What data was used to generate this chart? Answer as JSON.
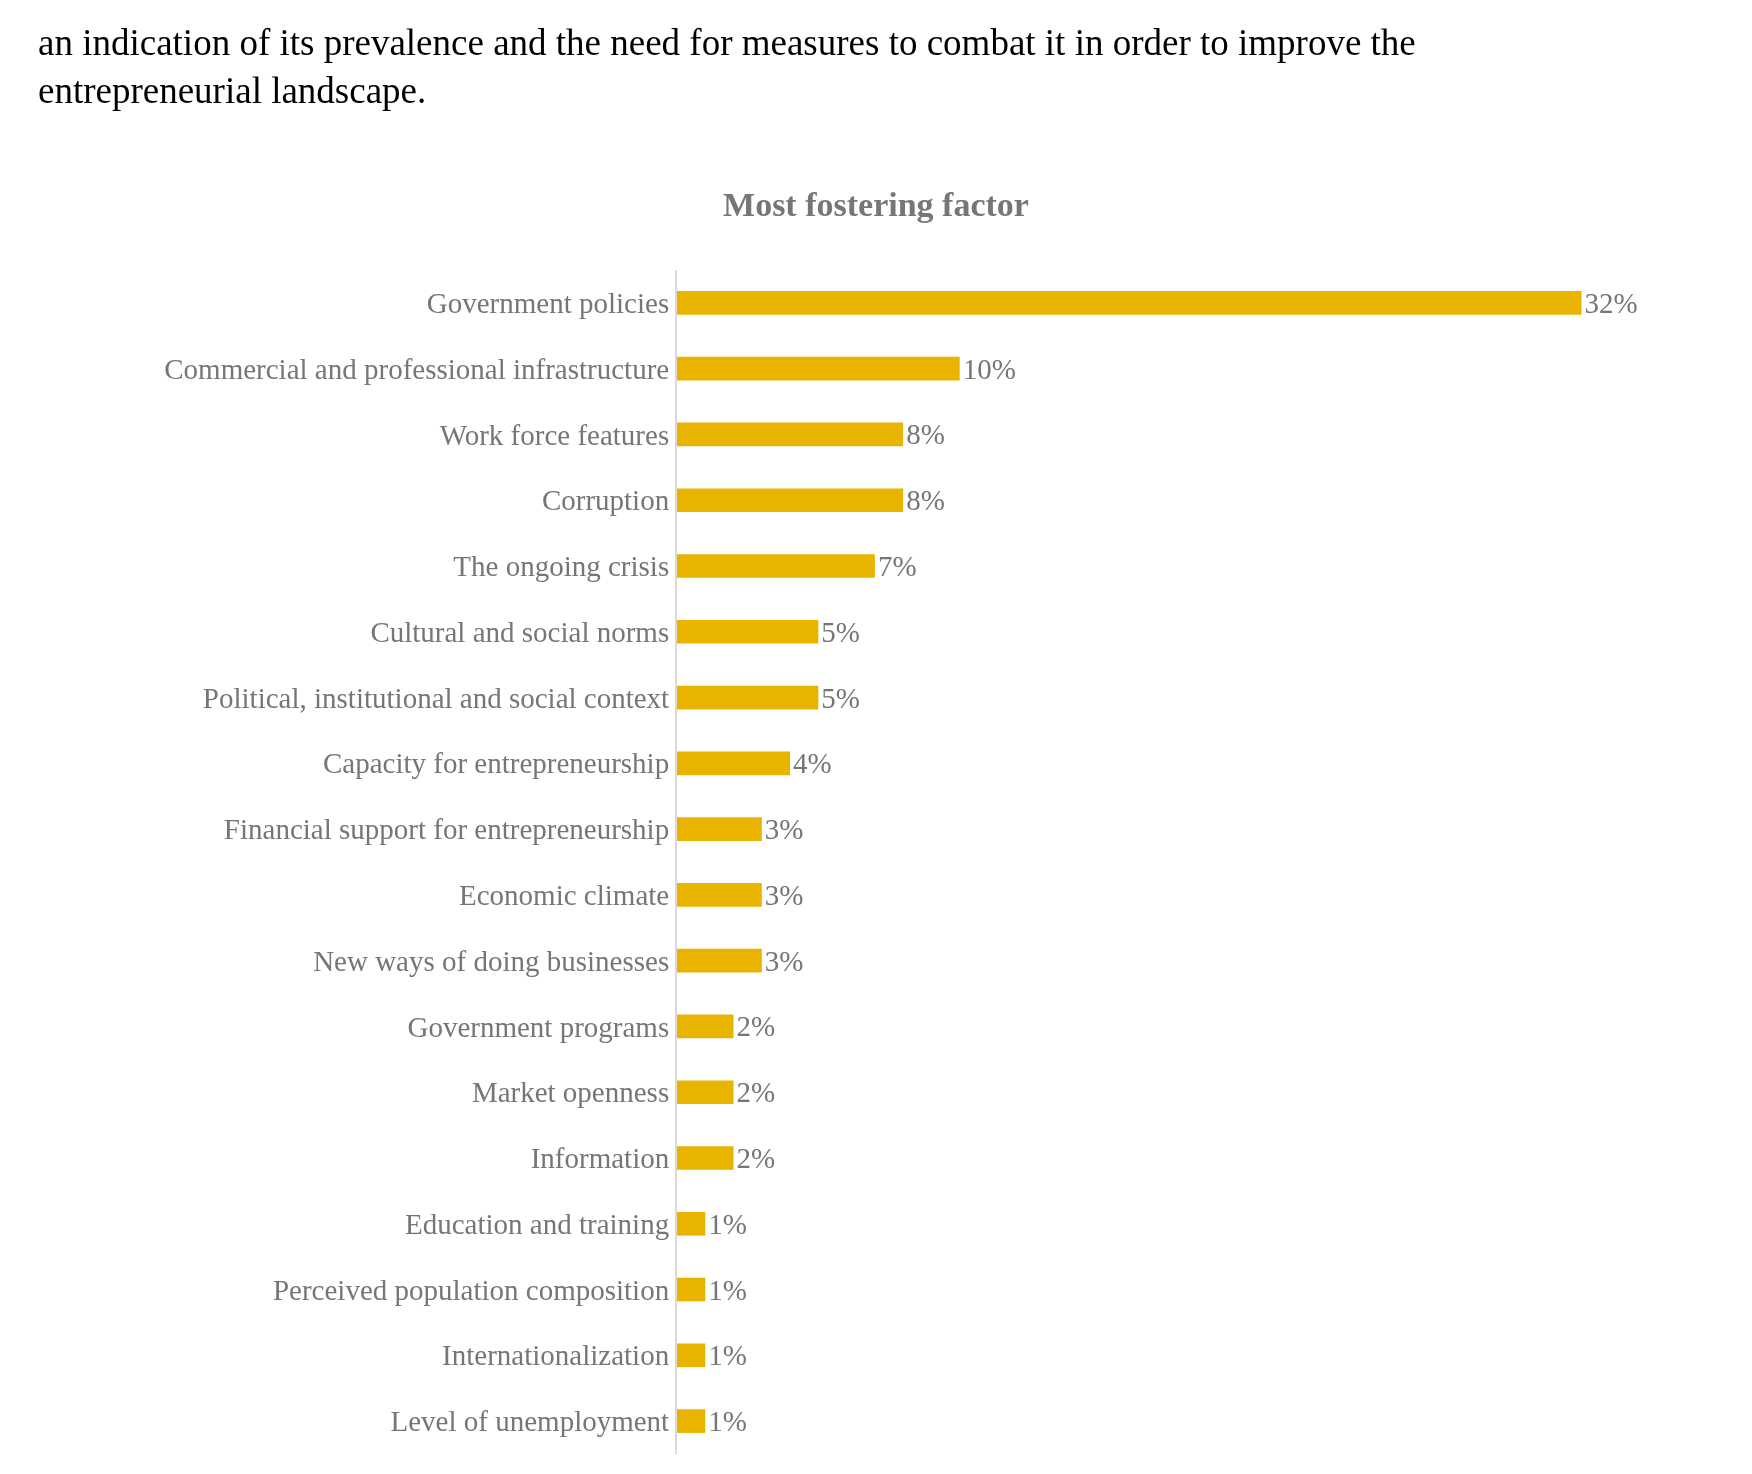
{
  "chart_data": {
    "type": "bar",
    "orientation": "horizontal",
    "title": "Most fostering factor",
    "annotations": [
      "an indication of its prevalence and the need for measures to combat it in order to improve the\nentrepreneurial landscape."
    ],
    "categories": [
      "Government policies",
      "Commercial and professional infrastructure",
      "Work force features",
      "Corruption",
      "The ongoing crisis",
      "Cultural and social norms",
      "Political, institutional and social context",
      "Capacity for entrepreneurship",
      "Financial support for entrepreneurship",
      "Economic climate",
      "New ways of doing businesses",
      "Government programs",
      "Market openness",
      "Information",
      "Education and training",
      "Perceived population composition",
      "Internationalization",
      "Level of unemployment"
    ],
    "values": [
      32,
      10,
      8,
      8,
      7,
      5,
      5,
      4,
      3,
      3,
      3,
      2,
      2,
      2,
      1,
      1,
      1,
      1
    ],
    "value_labels": [
      "32%",
      "10%",
      "8%",
      "8%",
      "7%",
      "5%",
      "5%",
      "4%",
      "3%",
      "3%",
      "3%",
      "2%",
      "2%",
      "2%",
      "1%",
      "1%",
      "1%",
      "1%"
    ],
    "color": "#e8b400",
    "legend": false
  }
}
